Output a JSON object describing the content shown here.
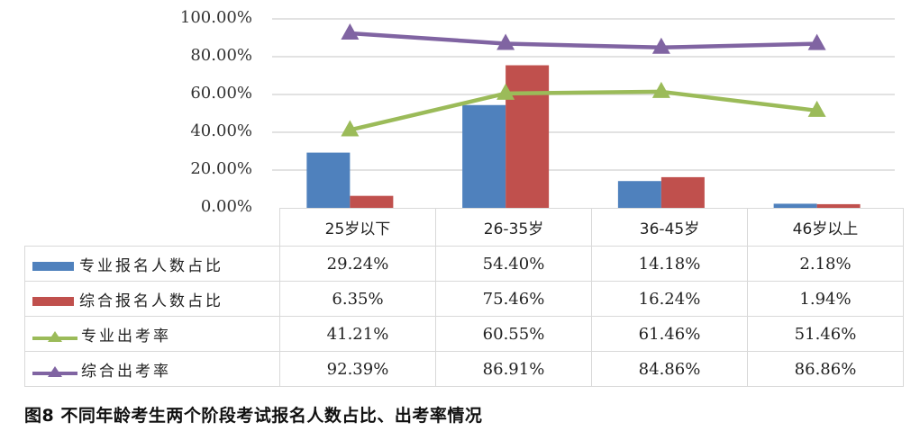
{
  "chart_data": {
    "type": "bar",
    "title": "",
    "caption": "图8  不同年龄考生两个阶段考试报名人数占比、出考率情况",
    "xlabel": "",
    "ylabel": "",
    "ylim": [
      0,
      100
    ],
    "yticks": [
      "0.00%",
      "20.00%",
      "40.00%",
      "60.00%",
      "80.00%",
      "100.00%"
    ],
    "grid": true,
    "legend_position": "data-table",
    "categories": [
      "25岁以下",
      "26-35岁",
      "36-45岁",
      "46岁以上"
    ],
    "series": [
      {
        "name": "专业报名人数占比",
        "type": "bar",
        "color": "#4f81bd",
        "values": [
          29.24,
          54.4,
          14.18,
          2.18
        ],
        "labels": [
          "29.24%",
          "54.40%",
          "14.18%",
          "2.18%"
        ]
      },
      {
        "name": "综合报名人数占比",
        "type": "bar",
        "color": "#c0504d",
        "values": [
          6.35,
          75.46,
          16.24,
          1.94
        ],
        "labels": [
          "6.35%",
          "75.46%",
          "16.24%",
          "1.94%"
        ]
      },
      {
        "name": "专业出考率",
        "type": "line",
        "marker": "triangle",
        "color": "#9bbb59",
        "values": [
          41.21,
          60.55,
          61.46,
          51.46
        ],
        "labels": [
          "41.21%",
          "60.55%",
          "61.46%",
          "51.46%"
        ]
      },
      {
        "name": "综合出考率",
        "type": "line",
        "marker": "triangle",
        "color": "#8064a2",
        "values": [
          92.39,
          86.91,
          84.86,
          86.86
        ],
        "labels": [
          "92.39%",
          "86.91%",
          "84.86%",
          "86.86%"
        ]
      }
    ]
  }
}
